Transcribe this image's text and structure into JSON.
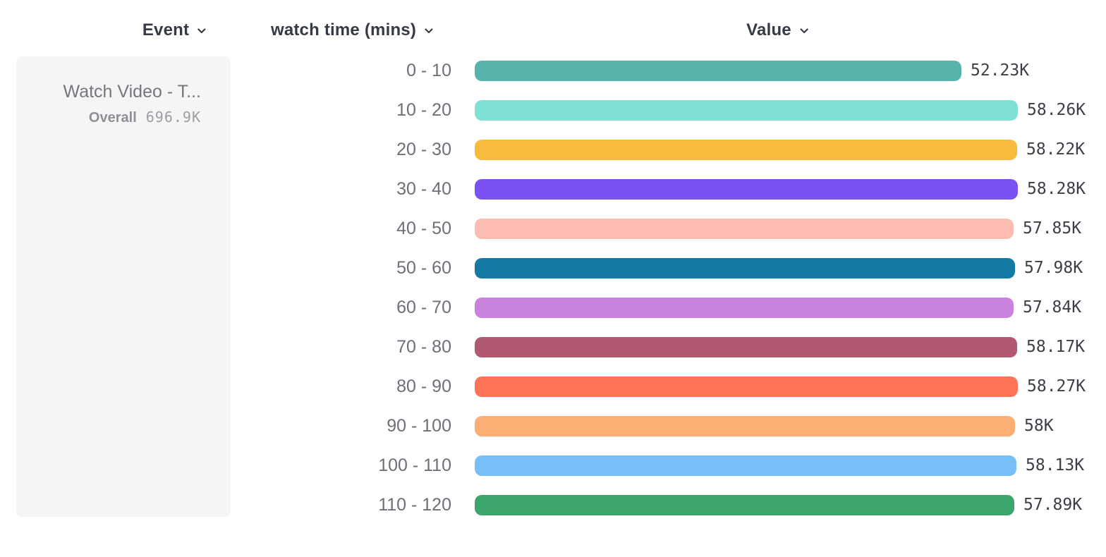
{
  "header": {
    "event_label": "Event",
    "breakdown_label": "watch time (mins)",
    "value_label": "Value"
  },
  "event_panel": {
    "title": "Watch Video - T...",
    "overall_label": "Overall",
    "overall_value": "696.9K"
  },
  "chart_data": {
    "type": "bar",
    "orientation": "horizontal",
    "title": "",
    "xlabel": "Value",
    "ylabel": "watch time (mins)",
    "categories": [
      "0 - 10",
      "10 - 20",
      "20 - 30",
      "30 - 40",
      "40 - 50",
      "50 - 60",
      "60 - 70",
      "70 - 80",
      "80 - 90",
      "90 - 100",
      "100 - 110",
      "110 - 120"
    ],
    "values": [
      52230,
      58260,
      58220,
      58280,
      57850,
      57980,
      57840,
      58170,
      58270,
      58000,
      58130,
      57890
    ],
    "value_labels": [
      "52.23K",
      "58.26K",
      "58.22K",
      "58.28K",
      "57.85K",
      "57.98K",
      "57.84K",
      "58.17K",
      "58.27K",
      "58K",
      "58.13K",
      "57.89K"
    ],
    "colors": [
      "#56b4ac",
      "#7fe1d6",
      "#f7bc3d",
      "#7a52f4",
      "#fcbcb2",
      "#127aa3",
      "#c982dd",
      "#b15970",
      "#fc7355",
      "#fbaf75",
      "#77bff7",
      "#3ba56b"
    ],
    "xlim": [
      0,
      58280
    ],
    "grid": false,
    "legend": "none",
    "chevron_color": "#363a44"
  }
}
